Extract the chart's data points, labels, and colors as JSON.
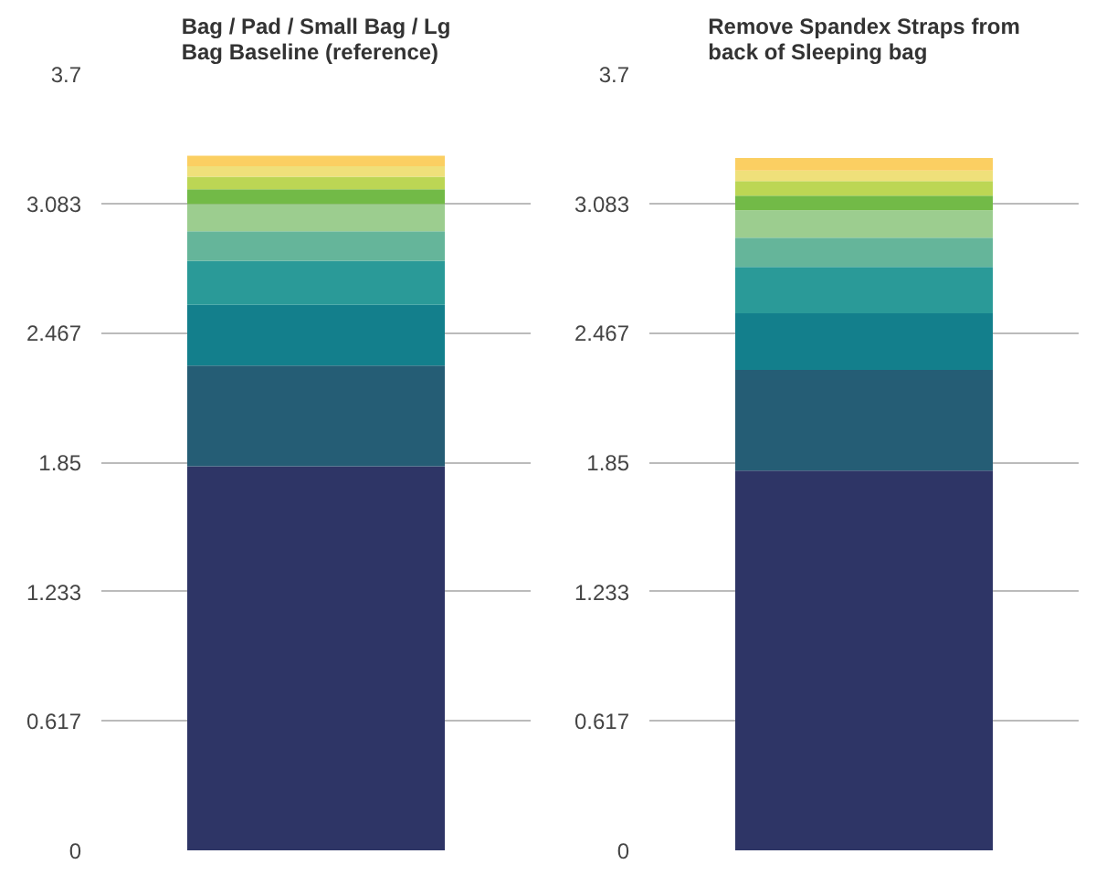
{
  "chart_data": [
    {
      "type": "bar",
      "stacked": true,
      "title": "Bag / Pad / Small Bag / Lg Bag Baseline (reference)",
      "categories": [
        null
      ],
      "ylim": [
        0,
        3.7
      ],
      "yticks": [
        0,
        0.617,
        1.233,
        1.85,
        2.467,
        3.083,
        3.7
      ],
      "grid": "y",
      "series": [
        {
          "color": "#2e3566",
          "values": [
            1.83
          ]
        },
        {
          "color": "#255d75",
          "values": [
            0.48
          ]
        },
        {
          "color": "#137f8c",
          "values": [
            0.29
          ]
        },
        {
          "color": "#2a9a98",
          "values": [
            0.21
          ]
        },
        {
          "color": "#65b59a",
          "values": [
            0.14
          ]
        },
        {
          "color": "#9ccd8f",
          "values": [
            0.13
          ]
        },
        {
          "color": "#72ba47",
          "values": [
            0.07
          ]
        },
        {
          "color": "#bcd654",
          "values": [
            0.06
          ]
        },
        {
          "color": "#efe07a",
          "values": [
            0.05
          ]
        },
        {
          "color": "#fbcf62",
          "values": [
            0.05
          ]
        }
      ]
    },
    {
      "type": "bar",
      "stacked": true,
      "title": "Remove Spandex Straps from back of Sleeping bag",
      "categories": [
        null
      ],
      "ylim": [
        0,
        3.7
      ],
      "yticks": [
        0,
        0.617,
        1.233,
        1.85,
        2.467,
        3.083,
        3.7
      ],
      "grid": "y",
      "series": [
        {
          "color": "#2e3566",
          "values": [
            1.81
          ]
        },
        {
          "color": "#255d75",
          "values": [
            0.48
          ]
        },
        {
          "color": "#137f8c",
          "values": [
            0.27
          ]
        },
        {
          "color": "#2a9a98",
          "values": [
            0.22
          ]
        },
        {
          "color": "#65b59a",
          "values": [
            0.14
          ]
        },
        {
          "color": "#9ccd8f",
          "values": [
            0.13
          ]
        },
        {
          "color": "#72ba47",
          "values": [
            0.07
          ]
        },
        {
          "color": "#bcd654",
          "values": [
            0.07
          ]
        },
        {
          "color": "#efe07a",
          "values": [
            0.05
          ]
        },
        {
          "color": "#fbcf62",
          "values": [
            0.06
          ]
        }
      ]
    }
  ]
}
